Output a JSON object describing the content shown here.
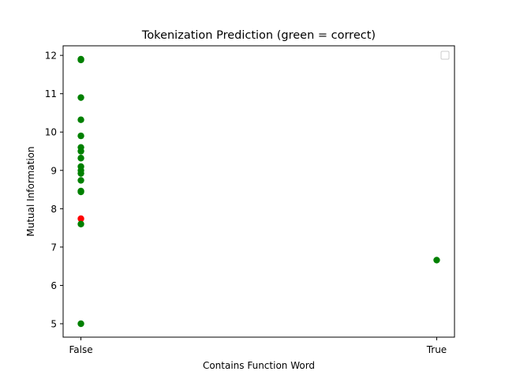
{
  "chart_data": {
    "type": "scatter",
    "title": "Tokenization Prediction (green = correct)",
    "xlabel": "Contains Function Word",
    "ylabel": "Mutual Information",
    "x_categories": [
      "False",
      "True"
    ],
    "xlim": [
      -0.05,
      1.05
    ],
    "ylim": [
      4.65,
      12.25
    ],
    "yticks": [
      5,
      6,
      7,
      8,
      9,
      10,
      11,
      12
    ],
    "legend": {
      "position": "top-right",
      "entries": []
    },
    "grid": false,
    "colors": {
      "correct": "#008000",
      "incorrect": "#ff0000"
    },
    "points": [
      {
        "x": "False",
        "y": 11.9,
        "correct": true
      },
      {
        "x": "False",
        "y": 11.88,
        "correct": true
      },
      {
        "x": "False",
        "y": 10.9,
        "correct": true
      },
      {
        "x": "False",
        "y": 10.32,
        "correct": true
      },
      {
        "x": "False",
        "y": 9.9,
        "correct": true
      },
      {
        "x": "False",
        "y": 9.6,
        "correct": true
      },
      {
        "x": "False",
        "y": 9.5,
        "correct": true
      },
      {
        "x": "False",
        "y": 9.32,
        "correct": true
      },
      {
        "x": "False",
        "y": 9.1,
        "correct": true
      },
      {
        "x": "False",
        "y": 9.0,
        "correct": true
      },
      {
        "x": "False",
        "y": 8.92,
        "correct": true
      },
      {
        "x": "False",
        "y": 8.74,
        "correct": true
      },
      {
        "x": "False",
        "y": 8.46,
        "correct": true
      },
      {
        "x": "False",
        "y": 8.44,
        "correct": true
      },
      {
        "x": "False",
        "y": 7.74,
        "correct": false
      },
      {
        "x": "False",
        "y": 7.6,
        "correct": true
      },
      {
        "x": "False",
        "y": 5.0,
        "correct": true
      },
      {
        "x": "True",
        "y": 6.66,
        "correct": true
      }
    ]
  }
}
